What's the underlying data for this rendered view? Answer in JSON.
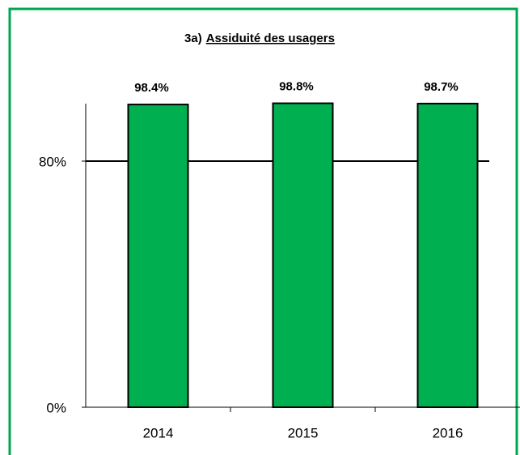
{
  "chart_data": {
    "type": "bar",
    "title_prefix": "3a)",
    "title": "Assiduité des usagers",
    "categories": [
      "2014",
      "2015",
      "2016"
    ],
    "values": [
      98.4,
      98.8,
      98.7
    ],
    "value_labels": [
      "98.4%",
      "98.8%",
      "98.7%"
    ],
    "color": "#00b050",
    "ylim": [
      0,
      100
    ],
    "yticks": [
      {
        "value": 0,
        "label": "0%"
      },
      {
        "value": 80,
        "label": "80%"
      }
    ],
    "reference_line": 80
  }
}
